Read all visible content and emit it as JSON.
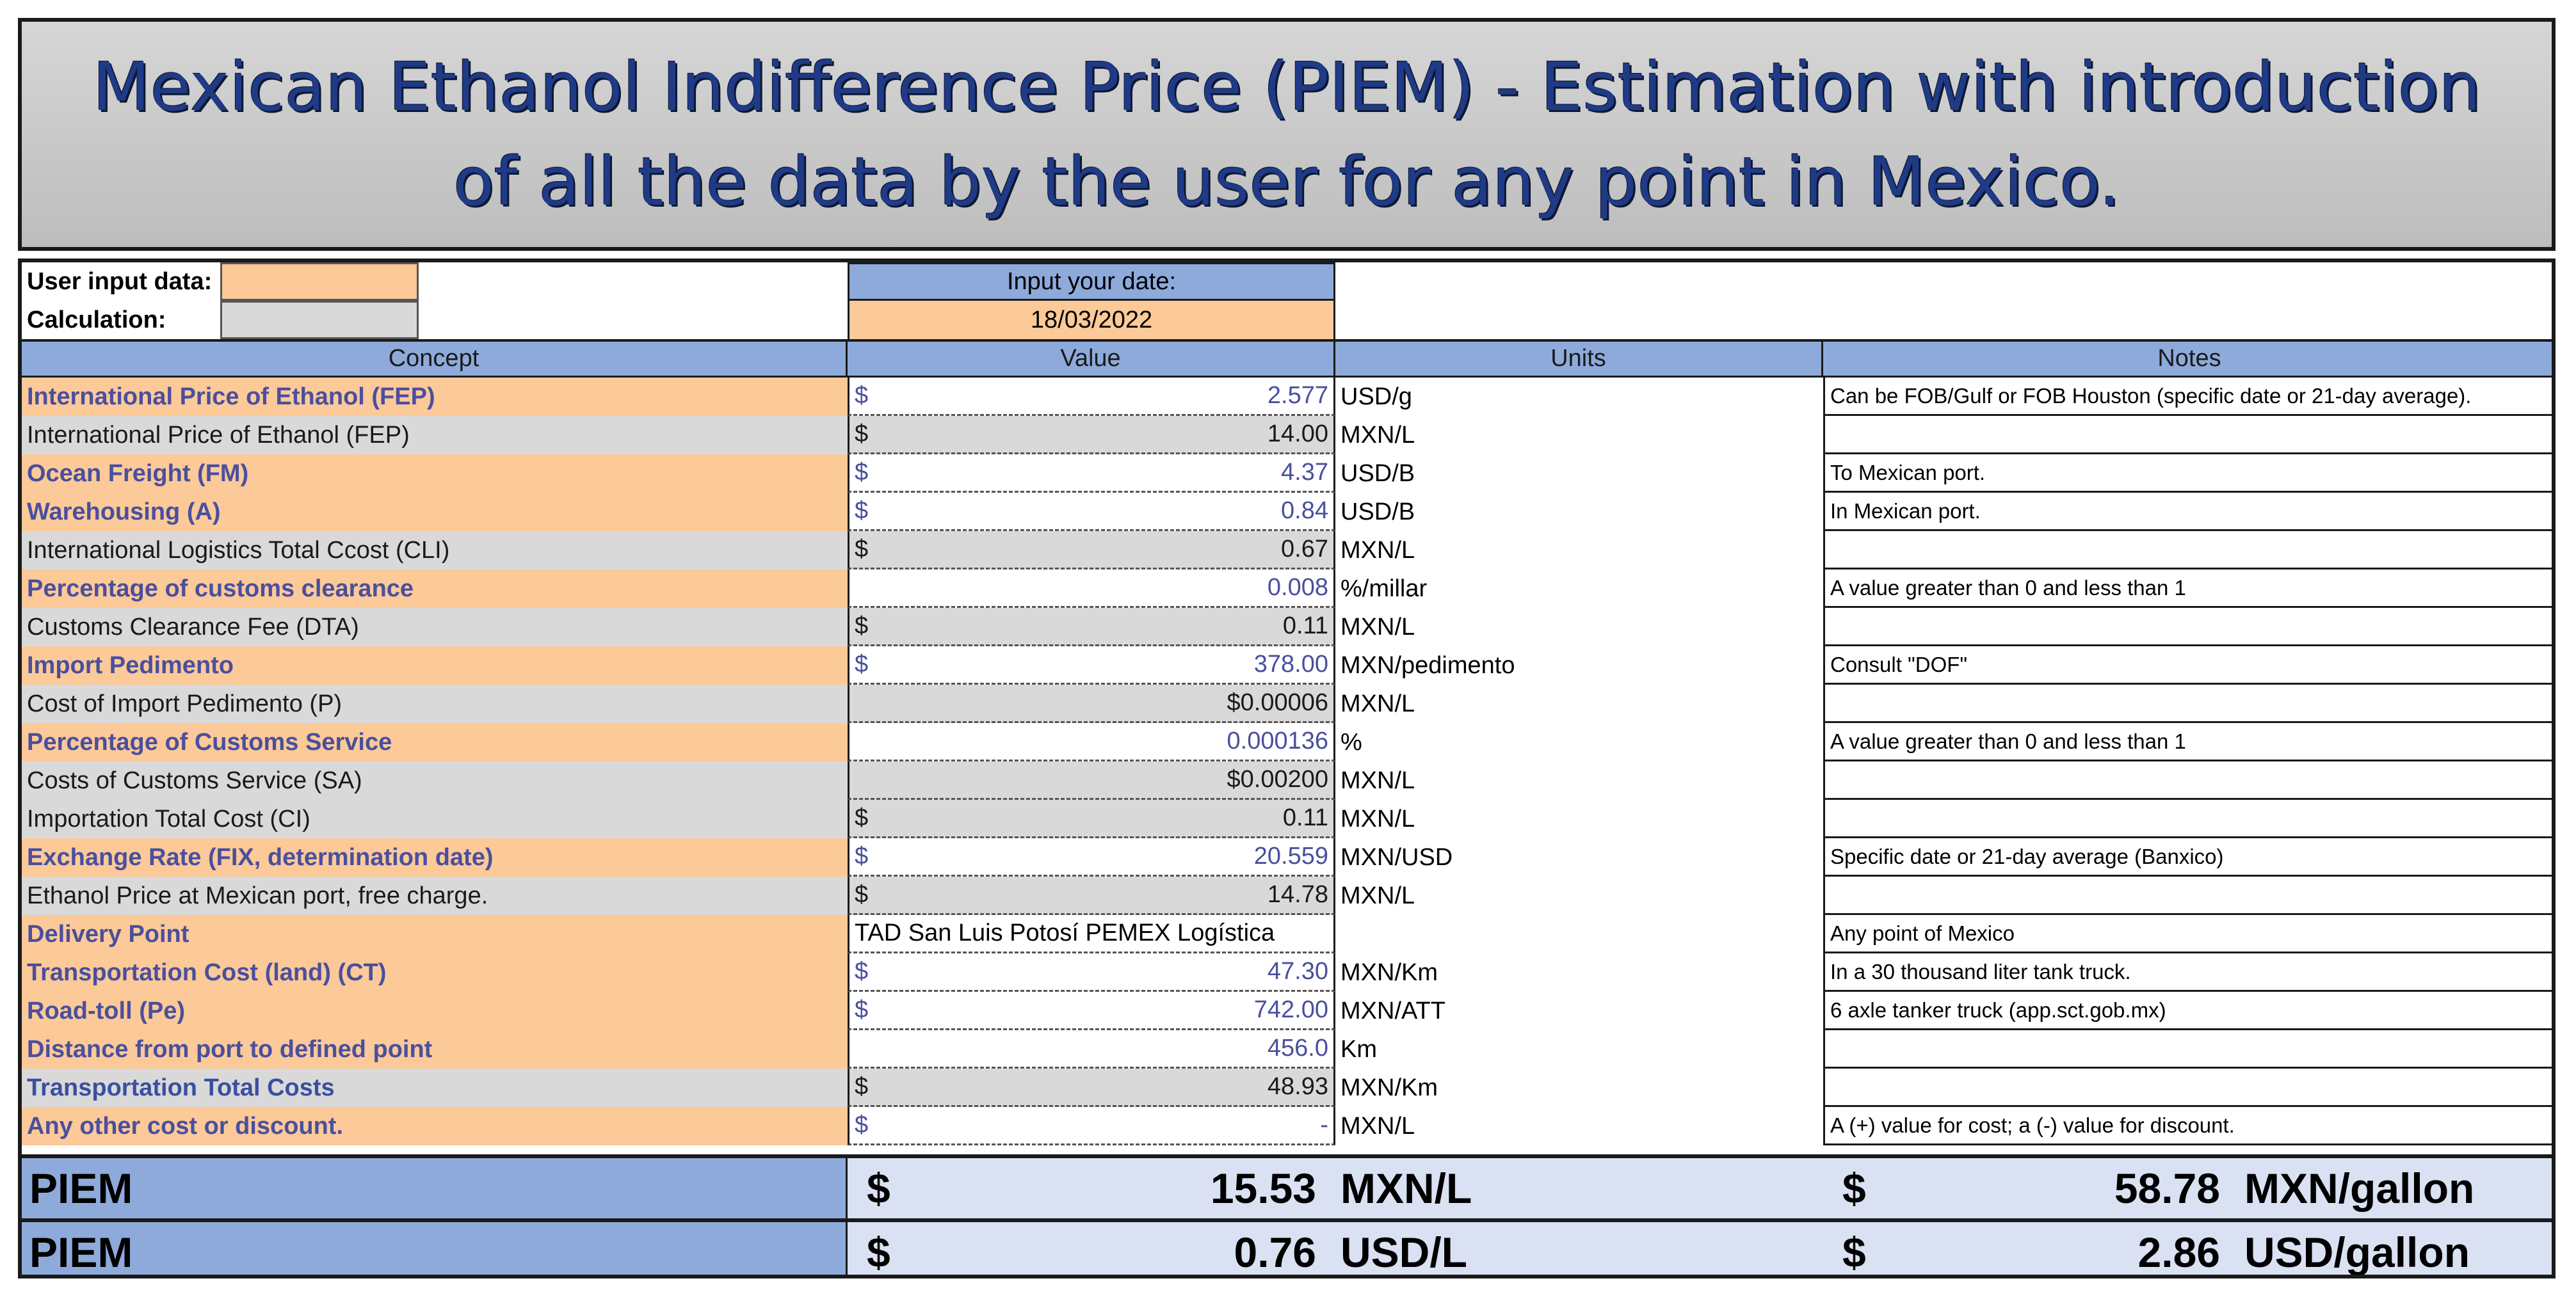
{
  "title": "Mexican Ethanol Indifference Price (PIEM) - Estimation with introduction of all the data by the user for any point in Mexico.",
  "legend": {
    "user_input_label": "User input data:",
    "calculation_label": "Calculation:",
    "user_input_color": "#fcc998",
    "calculation_color": "#d9d9d9"
  },
  "date": {
    "label": "Input your date:",
    "value": "18/03/2022"
  },
  "headers": {
    "concept": "Concept",
    "value": "Value",
    "units": "Units",
    "notes": "Notes"
  },
  "rows": [
    {
      "concept": "International Price of Ethanol (FEP)",
      "cur": "$",
      "value": "2.577",
      "units": "USD/g",
      "notes": "Can be FOB/Gulf or FOB Houston (specific date or 21-day average).",
      "kind": "input"
    },
    {
      "concept": "International Price of Ethanol (FEP)",
      "cur": "$",
      "value": "14.00",
      "units": "MXN/L",
      "notes": "",
      "kind": "calc"
    },
    {
      "concept": "Ocean Freight (FM)",
      "cur": "$",
      "value": "4.37",
      "units": "USD/B",
      "notes": "To Mexican port.",
      "kind": "input"
    },
    {
      "concept": "Warehousing (A)",
      "cur": "$",
      "value": "0.84",
      "units": "USD/B",
      "notes": "In Mexican port.",
      "kind": "input"
    },
    {
      "concept": "International Logistics Total Ccost (CLI)",
      "cur": "$",
      "value": "0.67",
      "units": "MXN/L",
      "notes": "",
      "kind": "calc"
    },
    {
      "concept": "Percentage of customs clearance",
      "cur": "",
      "value": "0.008",
      "units": "%/millar",
      "notes": "A value greater than 0 and less than 1",
      "kind": "input"
    },
    {
      "concept": "Customs Clearance Fee (DTA)",
      "cur": "$",
      "value": "0.11",
      "units": "MXN/L",
      "notes": "",
      "kind": "calc"
    },
    {
      "concept": "Import Pedimento",
      "cur": "$",
      "value": "378.00",
      "units": "MXN/pedimento",
      "notes": "Consult \"DOF\"",
      "kind": "input"
    },
    {
      "concept": "Cost of Import Pedimento (P)",
      "cur": "",
      "value": "$0.00006",
      "units": "MXN/L",
      "notes": "",
      "kind": "calc"
    },
    {
      "concept": "Percentage of Customs Service",
      "cur": "",
      "value": "0.000136",
      "units": "%",
      "notes": "A value greater than 0 and less than 1",
      "kind": "input"
    },
    {
      "concept": "Costs of Customs Service (SA)",
      "cur": "",
      "value": "$0.00200",
      "units": "MXN/L",
      "notes": "",
      "kind": "calc"
    },
    {
      "concept": "Importation Total Cost (CI)",
      "cur": "$",
      "value": "0.11",
      "units": "MXN/L",
      "notes": "",
      "kind": "calc"
    },
    {
      "concept": "Exchange Rate (FIX, determination date)",
      "cur": "$",
      "value": "20.559",
      "units": "MXN/USD",
      "notes": "Specific date or 21-day average (Banxico)",
      "kind": "input"
    },
    {
      "concept": "Ethanol Price at Mexican port, free charge.",
      "cur": "$",
      "value": "14.78",
      "units": "MXN/L",
      "notes": "",
      "kind": "calc"
    },
    {
      "concept": "Delivery Point",
      "cur": "TAD San Luis Potosí PEMEX Logística",
      "value": "",
      "units": "",
      "notes": "Any point of Mexico",
      "kind": "input-text"
    },
    {
      "concept": "Transportation Cost (land) (CT)",
      "cur": "$",
      "value": "47.30",
      "units": "MXN/Km",
      "notes": "In a 30 thousand liter tank truck.",
      "kind": "input"
    },
    {
      "concept": "Road-toll (Pe)",
      "cur": "$",
      "value": "742.00",
      "units": "MXN/ATT",
      "notes": "6 axle tanker truck (app.sct.gob.mx)",
      "kind": "input"
    },
    {
      "concept": "Distance from port to defined point",
      "cur": "",
      "value": "456.0",
      "units": "Km",
      "notes": "",
      "kind": "input"
    },
    {
      "concept": "Transportation Total Costs",
      "cur": "$",
      "value": "48.93",
      "units": "MXN/Km",
      "notes": "",
      "kind": "total"
    },
    {
      "concept": "Any other cost or discount.",
      "cur": "$",
      "value": "-",
      "units": "MXN/L",
      "notes": "A (+) value for cost; a (-) value for discount.",
      "kind": "input"
    }
  ],
  "piem": [
    {
      "label": "PIEM",
      "cur1": "$",
      "value1": "15.53",
      "unit1": "MXN/L",
      "cur2": "$",
      "value2": "58.78",
      "unit2": "MXN/gallon"
    },
    {
      "label": "PIEM",
      "cur1": "$",
      "value1": "0.76",
      "unit1": "USD/L",
      "cur2": "$",
      "value2": "2.86",
      "unit2": "USD/gallon"
    }
  ]
}
